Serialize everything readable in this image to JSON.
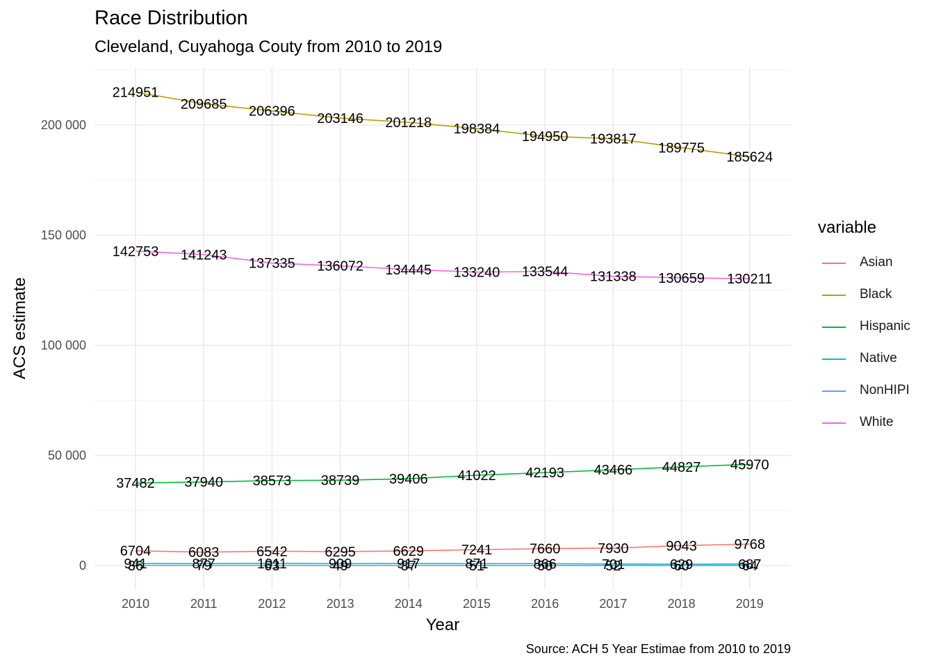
{
  "chart_data": {
    "type": "line",
    "title": "Race Distribution",
    "subtitle": "Cleveland, Cuyahoga Couty from 2010 to 2019",
    "caption": "Source: ACH 5 Year Estimae from 2010 to 2019",
    "xlabel": "Year",
    "ylabel": "ACS estimate",
    "x": [
      2010,
      2011,
      2012,
      2013,
      2014,
      2015,
      2016,
      2017,
      2018,
      2019
    ],
    "ylim": [
      -9000,
      226000
    ],
    "yticks": [
      0,
      50000,
      100000,
      150000,
      200000
    ],
    "ytick_labels": [
      "0",
      "50 000",
      "100 000",
      "150 000",
      "200 000"
    ],
    "grid": true,
    "legend_title": "variable",
    "legend_position": "right",
    "series": [
      {
        "name": "Asian",
        "color": "#F8766D",
        "values": [
          6704,
          6083,
          6542,
          6295,
          6629,
          7241,
          7660,
          7930,
          9043,
          9768
        ]
      },
      {
        "name": "Black",
        "color": "#B79F00",
        "values": [
          214951,
          209685,
          206396,
          203146,
          201218,
          198384,
          194950,
          193817,
          189775,
          185624
        ]
      },
      {
        "name": "Hispanic",
        "color": "#00BA38",
        "values": [
          37482,
          37940,
          38573,
          38739,
          39406,
          41022,
          42193,
          43466,
          44827,
          45970
        ]
      },
      {
        "name": "Native",
        "color": "#00BFC4",
        "values": [
          941,
          877,
          1011,
          909,
          917,
          871,
          866,
          701,
          629,
          687
        ]
      },
      {
        "name": "NonHIPI",
        "color": "#619CFF",
        "values": [
          36,
          79,
          63,
          49,
          37,
          51,
          50,
          52,
          60,
          64
        ]
      },
      {
        "name": "White",
        "color": "#F564E3",
        "values": [
          142753,
          141243,
          137335,
          136072,
          134445,
          133240,
          133544,
          131338,
          130659,
          130211
        ]
      }
    ]
  }
}
